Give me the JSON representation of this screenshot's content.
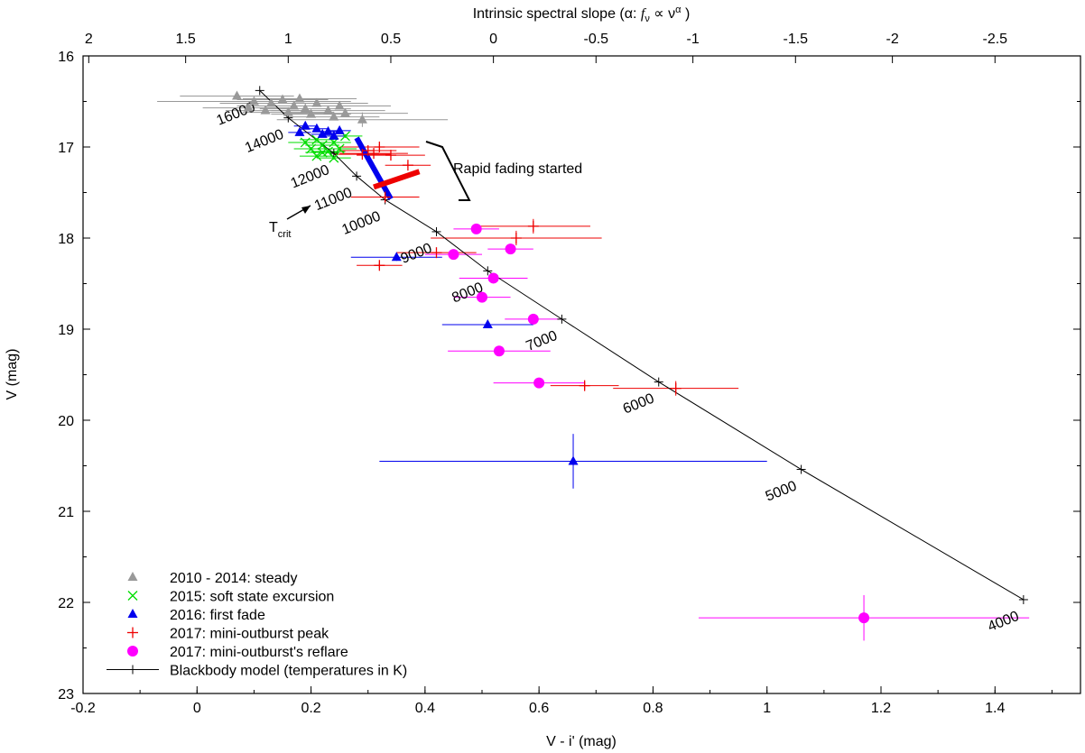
{
  "chart_data": {
    "type": "scatter",
    "xlabel": "V - i' (mag)",
    "ylabel": "V (mag)",
    "x2label_prefix": "Intrinsic spectral slope (α: ",
    "x2label_f": "f",
    "x2label_fsub": "ν",
    "x2label_mid": " ∝ ν",
    "x2label_sup": "α",
    "x2label_end": " )",
    "xlim": [
      -0.2,
      1.55
    ],
    "ylim": [
      16,
      23
    ],
    "y_inverted": true,
    "xticks": [
      "-0.2",
      "0",
      "0.2",
      "0.4",
      "0.6",
      "0.8",
      "1",
      "1.2",
      "1.4"
    ],
    "yticks": [
      "16",
      "17",
      "18",
      "19",
      "20",
      "21",
      "22",
      "23"
    ],
    "x2ticks": [
      {
        "label": "2",
        "at_x": -0.19
      },
      {
        "label": "1.5",
        "at_x": -0.02
      },
      {
        "label": "1",
        "at_x": 0.16
      },
      {
        "label": "0.5",
        "at_x": 0.34
      },
      {
        "label": "0",
        "at_x": 0.52
      },
      {
        "label": "-0.5",
        "at_x": 0.7
      },
      {
        "label": "-1",
        "at_x": 0.87
      },
      {
        "label": "-1.5",
        "at_x": 1.05
      },
      {
        "label": "-2",
        "at_x": 1.22
      },
      {
        "label": "-2.5",
        "at_x": 1.4
      }
    ],
    "series": [
      {
        "name": "2010 - 2014: steady",
        "color": "#999999",
        "marker": "triangle",
        "points": [
          {
            "x": 0.07,
            "y": 16.44,
            "xerr": 0.1,
            "yerr": 0.03
          },
          {
            "x": 0.1,
            "y": 16.5,
            "xerr": 0.17,
            "yerr": 0.04
          },
          {
            "x": 0.13,
            "y": 16.52,
            "xerr": 0.09,
            "yerr": 0.03
          },
          {
            "x": 0.15,
            "y": 16.48,
            "xerr": 0.08,
            "yerr": 0.03
          },
          {
            "x": 0.17,
            "y": 16.55,
            "xerr": 0.1,
            "yerr": 0.03
          },
          {
            "x": 0.19,
            "y": 16.58,
            "xerr": 0.08,
            "yerr": 0.03
          },
          {
            "x": 0.21,
            "y": 16.52,
            "xerr": 0.09,
            "yerr": 0.03
          },
          {
            "x": 0.23,
            "y": 16.6,
            "xerr": 0.1,
            "yerr": 0.03
          },
          {
            "x": 0.16,
            "y": 16.62,
            "xerr": 0.08,
            "yerr": 0.03
          },
          {
            "x": 0.25,
            "y": 16.55,
            "xerr": 0.09,
            "yerr": 0.03
          },
          {
            "x": 0.2,
            "y": 16.64,
            "xerr": 0.07,
            "yerr": 0.03
          },
          {
            "x": 0.26,
            "y": 16.63,
            "xerr": 0.11,
            "yerr": 0.03
          },
          {
            "x": 0.12,
            "y": 16.6,
            "xerr": 0.07,
            "yerr": 0.03
          },
          {
            "x": 0.09,
            "y": 16.57,
            "xerr": 0.08,
            "yerr": 0.03
          },
          {
            "x": 0.29,
            "y": 16.7,
            "xerr": 0.15,
            "yerr": 0.08
          },
          {
            "x": 0.24,
            "y": 16.67,
            "xerr": 0.08,
            "yerr": 0.03
          },
          {
            "x": 0.18,
            "y": 16.47,
            "xerr": 0.1,
            "yerr": 0.03
          }
        ]
      },
      {
        "name": "2015: soft state excursion",
        "color": "#00dd00",
        "marker": "cross",
        "points": [
          {
            "x": 0.19,
            "y": 16.95,
            "xerr": 0.03,
            "yerr": 0.02
          },
          {
            "x": 0.21,
            "y": 16.92,
            "xerr": 0.03,
            "yerr": 0.02
          },
          {
            "x": 0.22,
            "y": 16.98,
            "xerr": 0.03,
            "yerr": 0.02
          },
          {
            "x": 0.24,
            "y": 16.95,
            "xerr": 0.03,
            "yerr": 0.02
          },
          {
            "x": 0.2,
            "y": 17.02,
            "xerr": 0.03,
            "yerr": 0.02
          },
          {
            "x": 0.23,
            "y": 17.05,
            "xerr": 0.03,
            "yerr": 0.02
          },
          {
            "x": 0.25,
            "y": 17.02,
            "xerr": 0.03,
            "yerr": 0.02
          },
          {
            "x": 0.26,
            "y": 16.88,
            "xerr": 0.03,
            "yerr": 0.02
          },
          {
            "x": 0.21,
            "y": 17.1,
            "xerr": 0.03,
            "yerr": 0.02
          },
          {
            "x": 0.24,
            "y": 17.12,
            "xerr": 0.03,
            "yerr": 0.02
          },
          {
            "x": 0.22,
            "y": 17.06,
            "xerr": 0.03,
            "yerr": 0.02
          }
        ]
      },
      {
        "name": "2016: first fade",
        "color": "#0000ee",
        "marker": "triangle",
        "points": [
          {
            "x": 0.19,
            "y": 16.77,
            "xerr": 0.02,
            "yerr": 0.01
          },
          {
            "x": 0.18,
            "y": 16.84,
            "xerr": 0.02,
            "yerr": 0.01
          },
          {
            "x": 0.21,
            "y": 16.8,
            "xerr": 0.02,
            "yerr": 0.01
          },
          {
            "x": 0.22,
            "y": 16.86,
            "xerr": 0.02,
            "yerr": 0.01
          },
          {
            "x": 0.23,
            "y": 16.83,
            "xerr": 0.02,
            "yerr": 0.01
          },
          {
            "x": 0.24,
            "y": 16.88,
            "xerr": 0.02,
            "yerr": 0.01
          },
          {
            "x": 0.25,
            "y": 16.82,
            "xerr": 0.02,
            "yerr": 0.01
          },
          {
            "x": 0.35,
            "y": 18.21,
            "xerr": 0.08,
            "yerr": 0.04
          },
          {
            "x": 0.51,
            "y": 18.95,
            "xerr": 0.08,
            "yerr": 0.04
          },
          {
            "x": 0.66,
            "y": 20.45,
            "xerr": 0.34,
            "yerr": 0.3
          }
        ],
        "fade_track": [
          {
            "x": 0.28,
            "y": 16.9
          },
          {
            "x": 0.34,
            "y": 17.57
          }
        ]
      },
      {
        "name": "2017: mini-outburst peak",
        "color": "#ee0000",
        "marker": "plus",
        "points": [
          {
            "x": 0.3,
            "y": 17.04,
            "xerr": 0.05,
            "yerr": 0.03
          },
          {
            "x": 0.31,
            "y": 17.07,
            "xerr": 0.06,
            "yerr": 0.03
          },
          {
            "x": 0.32,
            "y": 17.0,
            "xerr": 0.07,
            "yerr": 0.03
          },
          {
            "x": 0.29,
            "y": 17.08,
            "xerr": 0.05,
            "yerr": 0.03
          },
          {
            "x": 0.34,
            "y": 17.09,
            "xerr": 0.06,
            "yerr": 0.03
          },
          {
            "x": 0.37,
            "y": 17.2,
            "xerr": 0.04,
            "yerr": 0.03
          },
          {
            "x": 0.33,
            "y": 17.55,
            "xerr": 0.06,
            "yerr": 0.03
          },
          {
            "x": 0.59,
            "y": 17.87,
            "xerr": 0.1,
            "yerr": 0.08
          },
          {
            "x": 0.56,
            "y": 18.0,
            "xerr": 0.15,
            "yerr": 0.08
          },
          {
            "x": 0.42,
            "y": 18.16,
            "xerr": 0.07,
            "yerr": 0.04
          },
          {
            "x": 0.32,
            "y": 18.3,
            "xerr": 0.04,
            "yerr": 0.03
          },
          {
            "x": 0.68,
            "y": 19.62,
            "xerr": 0.06,
            "yerr": 0.04
          },
          {
            "x": 0.84,
            "y": 19.65,
            "xerr": 0.11,
            "yerr": 0.08
          }
        ],
        "peak_track": [
          {
            "x": 0.31,
            "y": 17.44
          },
          {
            "x": 0.39,
            "y": 17.27
          }
        ]
      },
      {
        "name": "2017: mini-outburst's reflare",
        "color": "#ff00ff",
        "marker": "circle",
        "points": [
          {
            "x": 0.49,
            "y": 17.9,
            "xerr": 0.04,
            "yerr": 0.03
          },
          {
            "x": 0.55,
            "y": 18.12,
            "xerr": 0.04,
            "yerr": 0.05
          },
          {
            "x": 0.45,
            "y": 18.18,
            "xerr": 0.05,
            "yerr": 0.04
          },
          {
            "x": 0.52,
            "y": 18.44,
            "xerr": 0.06,
            "yerr": 0.05
          },
          {
            "x": 0.5,
            "y": 18.65,
            "xerr": 0.05,
            "yerr": 0.04
          },
          {
            "x": 0.59,
            "y": 18.89,
            "xerr": 0.05,
            "yerr": 0.04
          },
          {
            "x": 0.53,
            "y": 19.24,
            "xerr": 0.09,
            "yerr": 0.04
          },
          {
            "x": 0.6,
            "y": 19.59,
            "xerr": 0.08,
            "yerr": 0.03
          },
          {
            "x": 1.17,
            "y": 22.17,
            "xerr": 0.29,
            "yerr": 0.25
          }
        ]
      }
    ],
    "blackbody": {
      "name": "Blackbody model (temperatures in K)",
      "color": "#000000",
      "points": [
        {
          "x": 0.11,
          "y": 16.38,
          "label": "16000"
        },
        {
          "x": 0.16,
          "y": 16.68,
          "label": "14000"
        },
        {
          "x": 0.24,
          "y": 17.07,
          "label": "12000"
        },
        {
          "x": 0.28,
          "y": 17.32,
          "label": "11000"
        },
        {
          "x": 0.33,
          "y": 17.58,
          "label": "10000"
        },
        {
          "x": 0.42,
          "y": 17.93,
          "label": "9000"
        },
        {
          "x": 0.51,
          "y": 18.36,
          "label": "8000"
        },
        {
          "x": 0.64,
          "y": 18.89,
          "label": "7000"
        },
        {
          "x": 0.81,
          "y": 19.58,
          "label": "6000"
        },
        {
          "x": 1.06,
          "y": 20.54,
          "label": "5000"
        },
        {
          "x": 1.45,
          "y": 21.97,
          "label": "4000"
        }
      ]
    },
    "annotations": {
      "rapid_fading": "Rapid fading started",
      "tcrit_main": "T",
      "tcrit_sub": "crit"
    },
    "legend_placement": "bottom-left"
  }
}
